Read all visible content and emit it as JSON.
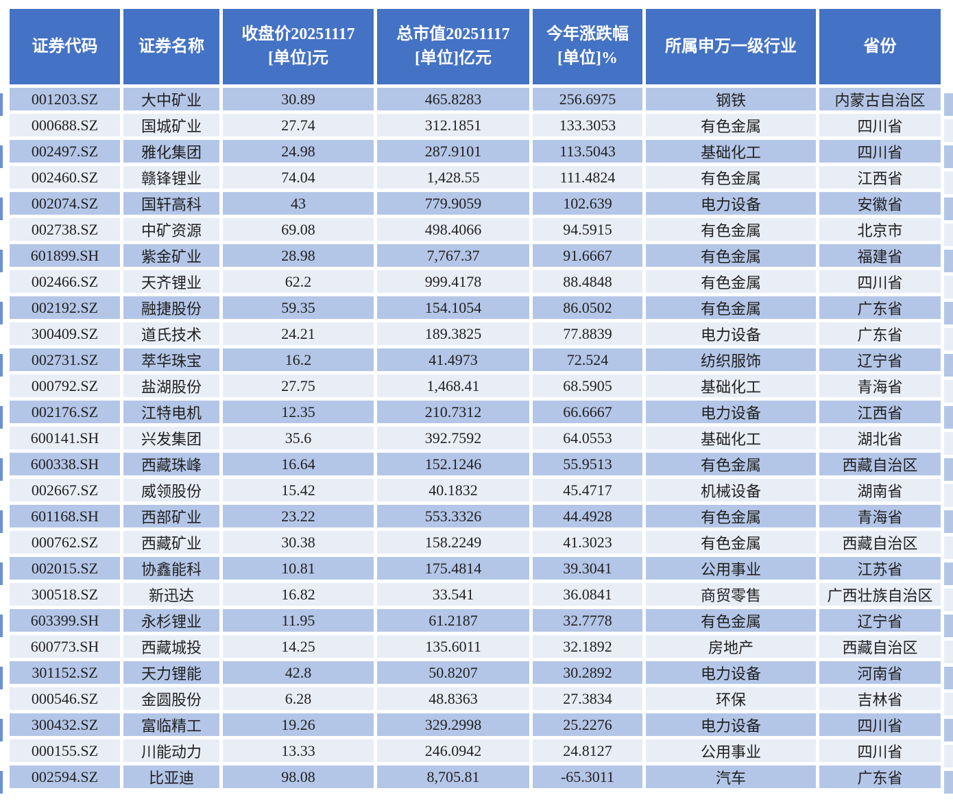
{
  "colors": {
    "header_bg": "#4472C4",
    "header_text": "#ffffff",
    "row_dark": "#B4C6E7",
    "row_light": "#E9EDF6",
    "cell_text": "#1f1f1f",
    "left_edge_mark": "#6B91D4"
  },
  "chart_data": {
    "type": "table",
    "columns": [
      {
        "label": "证券代码"
      },
      {
        "label": "证券名称"
      },
      {
        "label": "收盘价20251117\n[单位]元"
      },
      {
        "label": "总市值20251117\n[单位]亿元"
      },
      {
        "label": "今年涨跌幅\n[单位]%"
      },
      {
        "label": "所属申万一级行业"
      },
      {
        "label": "省份"
      }
    ],
    "rows": [
      [
        "001203.SZ",
        "大中矿业",
        "30.89",
        "465.8283",
        "256.6975",
        "钢铁",
        "内蒙古自治区"
      ],
      [
        "000688.SZ",
        "国城矿业",
        "27.74",
        "312.1851",
        "133.3053",
        "有色金属",
        "四川省"
      ],
      [
        "002497.SZ",
        "雅化集团",
        "24.98",
        "287.9101",
        "113.5043",
        "基础化工",
        "四川省"
      ],
      [
        "002460.SZ",
        "赣锋锂业",
        "74.04",
        "1,428.55",
        "111.4824",
        "有色金属",
        "江西省"
      ],
      [
        "002074.SZ",
        "国轩高科",
        "43",
        "779.9059",
        "102.639",
        "电力设备",
        "安徽省"
      ],
      [
        "002738.SZ",
        "中矿资源",
        "69.08",
        "498.4066",
        "94.5915",
        "有色金属",
        "北京市"
      ],
      [
        "601899.SH",
        "紫金矿业",
        "28.98",
        "7,767.37",
        "91.6667",
        "有色金属",
        "福建省"
      ],
      [
        "002466.SZ",
        "天齐锂业",
        "62.2",
        "999.4178",
        "88.4848",
        "有色金属",
        "四川省"
      ],
      [
        "002192.SZ",
        "融捷股份",
        "59.35",
        "154.1054",
        "86.0502",
        "有色金属",
        "广东省"
      ],
      [
        "300409.SZ",
        "道氏技术",
        "24.21",
        "189.3825",
        "77.8839",
        "电力设备",
        "广东省"
      ],
      [
        "002731.SZ",
        "萃华珠宝",
        "16.2",
        "41.4973",
        "72.524",
        "纺织服饰",
        "辽宁省"
      ],
      [
        "000792.SZ",
        "盐湖股份",
        "27.75",
        "1,468.41",
        "68.5905",
        "基础化工",
        "青海省"
      ],
      [
        "002176.SZ",
        "江特电机",
        "12.35",
        "210.7312",
        "66.6667",
        "电力设备",
        "江西省"
      ],
      [
        "600141.SH",
        "兴发集团",
        "35.6",
        "392.7592",
        "64.0553",
        "基础化工",
        "湖北省"
      ],
      [
        "600338.SH",
        "西藏珠峰",
        "16.64",
        "152.1246",
        "55.9513",
        "有色金属",
        "西藏自治区"
      ],
      [
        "002667.SZ",
        "威领股份",
        "15.42",
        "40.1832",
        "45.4717",
        "机械设备",
        "湖南省"
      ],
      [
        "601168.SH",
        "西部矿业",
        "23.22",
        "553.3326",
        "44.4928",
        "有色金属",
        "青海省"
      ],
      [
        "000762.SZ",
        "西藏矿业",
        "30.38",
        "158.2249",
        "41.3023",
        "有色金属",
        "西藏自治区"
      ],
      [
        "002015.SZ",
        "协鑫能科",
        "10.81",
        "175.4814",
        "39.3041",
        "公用事业",
        "江苏省"
      ],
      [
        "300518.SZ",
        "新迅达",
        "16.82",
        "33.541",
        "36.0841",
        "商贸零售",
        "广西壮族自治区"
      ],
      [
        "603399.SH",
        "永杉锂业",
        "11.95",
        "61.2187",
        "32.7778",
        "有色金属",
        "辽宁省"
      ],
      [
        "600773.SH",
        "西藏城投",
        "14.25",
        "135.6011",
        "32.1892",
        "房地产",
        "西藏自治区"
      ],
      [
        "301152.SZ",
        "天力锂能",
        "42.8",
        "50.8207",
        "30.2892",
        "电力设备",
        "河南省"
      ],
      [
        "000546.SZ",
        "金圆股份",
        "6.28",
        "48.8363",
        "27.3834",
        "环保",
        "吉林省"
      ],
      [
        "300432.SZ",
        "富临精工",
        "19.26",
        "329.2998",
        "25.2276",
        "电力设备",
        "四川省"
      ],
      [
        "000155.SZ",
        "川能动力",
        "13.33",
        "246.0942",
        "24.8127",
        "公用事业",
        "四川省"
      ],
      [
        "002594.SZ",
        "比亚迪",
        "98.08",
        "8,705.81",
        "-65.3011",
        "汽车",
        "广东省"
      ]
    ]
  }
}
